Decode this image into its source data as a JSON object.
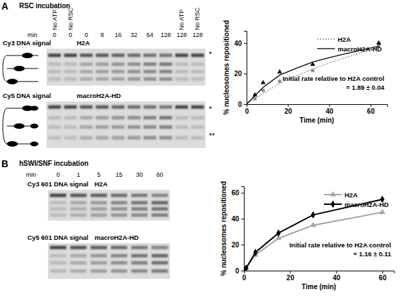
{
  "figure": {
    "panels": [
      {
        "label": "A",
        "title": "RSC incubation",
        "time_label": "min",
        "lanes": [
          {
            "top": "No ATP",
            "min": 0
          },
          {
            "top": "No RSC",
            "min": 0
          },
          {
            "min": 0
          },
          {
            "min": 8
          },
          {
            "min": 16
          },
          {
            "min": 32
          },
          {
            "min": 64
          },
          {
            "min": 128
          },
          {
            "top": "No ATP",
            "min": 128
          },
          {
            "top": "No RSC",
            "min": 128
          }
        ],
        "gels": [
          {
            "signal": "Cy3 DNA signal",
            "sample": "H2A",
            "marks": [
              "*"
            ]
          },
          {
            "signal": "Cy5 DNA signal",
            "sample": "macroH2A-HD",
            "marks": [
              "*",
              "**"
            ]
          }
        ]
      },
      {
        "label": "B",
        "title": "hSWI/SNF incubation",
        "time_label": "min",
        "lanes": [
          {
            "min": 0
          },
          {
            "min": 1
          },
          {
            "min": 5
          },
          {
            "min": 15
          },
          {
            "min": 30
          },
          {
            "min": 60
          }
        ],
        "gels": [
          {
            "signal": "Cy3 601 DNA signal",
            "sample": "H2A",
            "marks": []
          },
          {
            "signal": "Cy5 601 DNA signal",
            "sample": "macroH2A-HD",
            "marks": []
          }
        ]
      }
    ]
  },
  "chart_data": [
    {
      "type": "line",
      "x_label": "Time (min)",
      "y_label": "% nucleosomes repositioned",
      "xlim": [
        0,
        68
      ],
      "xticks": [
        0,
        20,
        40,
        60
      ],
      "ylim": [
        0,
        48
      ],
      "yticks": [
        0,
        20,
        40
      ],
      "legend": "upper right",
      "annotation": [
        "Initial rate relative to H2A control",
        "= 1.89 ± 0.04"
      ],
      "series": [
        {
          "name": "H2A",
          "color": "#8c8c8c",
          "line_style": "dotted",
          "marker": "square",
          "x": [
            4,
            8,
            16,
            32,
            64
          ],
          "values": [
            3.5,
            9,
            15,
            22,
            38
          ],
          "fit_x": [
            0,
            8,
            16,
            24,
            32,
            40,
            48,
            56,
            64
          ],
          "fit": [
            0,
            7,
            13.5,
            18.5,
            23,
            27,
            30.5,
            34,
            37
          ]
        },
        {
          "name": "macroH2A-HD",
          "color": "#000000",
          "line_style": "solid",
          "marker": "triangle",
          "x": [
            4,
            8,
            16,
            32,
            64
          ],
          "values": [
            6,
            14,
            21,
            26,
            40
          ],
          "fit_x": [
            0,
            8,
            16,
            24,
            32,
            40,
            48,
            56,
            64
          ],
          "fit": [
            0,
            11,
            19,
            23.5,
            27.5,
            30.5,
            33,
            35.5,
            38
          ]
        }
      ]
    },
    {
      "type": "line",
      "x_label": "Time (min)",
      "y_label": "% nucleosomes repositioned",
      "xlim": [
        0,
        65
      ],
      "xticks": [
        0,
        20,
        40,
        60
      ],
      "ylim": [
        0,
        65
      ],
      "yticks": [
        0,
        20,
        40,
        60
      ],
      "legend": "upper right",
      "annotation": [
        "Initial rate relative to H2A control",
        "= 1.16 ± 0.11"
      ],
      "series": [
        {
          "name": "H2A",
          "color": "#a6a6a6",
          "line_style": "solid",
          "marker": "triangle",
          "x": [
            0,
            1,
            5,
            15,
            30,
            60
          ],
          "values": [
            0,
            2,
            12,
            25,
            35,
            45
          ]
        },
        {
          "name": "macroH2A-HD",
          "color": "#000000",
          "line_style": "solid",
          "marker": "diamond",
          "x": [
            0,
            1,
            5,
            15,
            30,
            60
          ],
          "values": [
            0,
            2,
            14,
            29,
            43,
            55
          ]
        }
      ]
    }
  ]
}
